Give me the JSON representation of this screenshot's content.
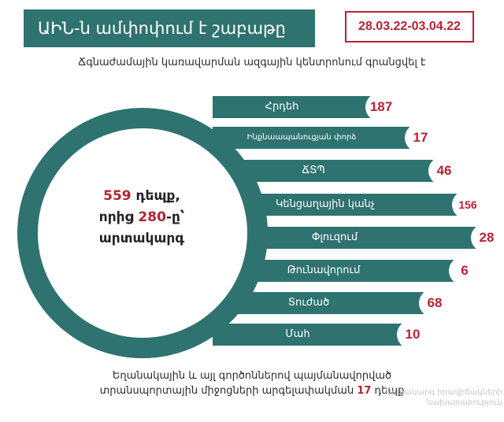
{
  "header": {
    "title": "ԱԻՆ-ն ամփոփում է շաբաթը",
    "date_range": "28.03.22-03.04.22"
  },
  "subtitle": "Ճգնաժամային կառավարման ազգային կենտրոնում գրանցվել է",
  "summary": {
    "total": "559",
    "total_suffix": " դեպք,",
    "of_which_prefix": "որից ",
    "of_which": "280",
    "of_which_suffix": "-ը՝",
    "category": "արտակարգ"
  },
  "incidents": [
    {
      "label": "Հրդեհ",
      "value": "187"
    },
    {
      "label": "Ինքնաապանուցյան փորձ",
      "value": "17"
    },
    {
      "label": "ՃՏՊ",
      "value": "46"
    },
    {
      "label": "Կենցաղային կանչ",
      "value": "156"
    },
    {
      "label": "Փլուզում",
      "value": "28"
    },
    {
      "label": "Թունավորում",
      "value": "6"
    },
    {
      "label": "Տուժած",
      "value": "68"
    },
    {
      "label": "Մահ",
      "value": "10"
    }
  ],
  "footer": {
    "line1": "Եղանակային և այլ գործոններով պայմանավորված",
    "line2_prefix": "տրանսպորտային միջոցների արգելափակման ",
    "line2_value": "17",
    "line2_suffix": " դեպք"
  },
  "watermark": "Արտակարգ իրավիճակների նախարարություն",
  "colors": {
    "teal": "#2f7370",
    "accent_red": "#b72233"
  }
}
